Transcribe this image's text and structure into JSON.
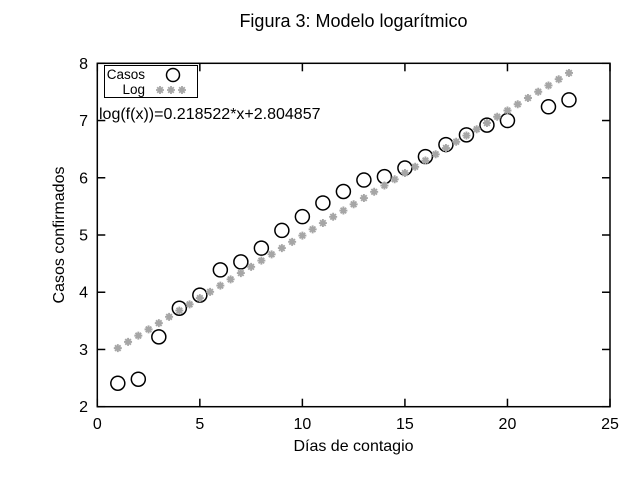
{
  "window": {
    "background": "#ffffff"
  },
  "colors": {
    "foreground": "#000000",
    "fit_marker_gray": "#a6a6a6"
  },
  "chart_data": {
    "type": "scatter",
    "title": "Figura 3: Modelo logarítmico",
    "xlabel": "Días de contagio",
    "ylabel": "Casos confirmados",
    "xlim": [
      0,
      25
    ],
    "ylim": [
      2,
      8
    ],
    "xticks": [
      0,
      5,
      10,
      15,
      20,
      25
    ],
    "yticks": [
      2,
      3,
      4,
      5,
      6,
      7,
      8
    ],
    "grid": false,
    "legend_position": "top-left",
    "series": [
      {
        "name": "Casos",
        "type": "scatter",
        "marker": "open-circle",
        "color": "#000000",
        "points": [
          [
            1,
            2.41
          ],
          [
            2,
            2.48
          ],
          [
            3,
            3.22
          ],
          [
            4,
            3.72
          ],
          [
            5,
            3.95
          ],
          [
            6,
            4.39
          ],
          [
            7,
            4.53
          ],
          [
            8,
            4.77
          ],
          [
            9,
            5.08
          ],
          [
            10,
            5.32
          ],
          [
            11,
            5.56
          ],
          [
            12,
            5.76
          ],
          [
            13,
            5.96
          ],
          [
            14,
            6.02
          ],
          [
            15,
            6.17
          ],
          [
            16,
            6.37
          ],
          [
            17,
            6.58
          ],
          [
            18,
            6.75
          ],
          [
            19,
            6.92
          ],
          [
            20,
            7.0
          ],
          [
            22,
            7.24
          ],
          [
            23,
            7.36
          ]
        ]
      },
      {
        "name": "Log",
        "type": "fit-line-points",
        "marker": "asterisk",
        "color": "#a6a6a6",
        "slope": 0.218522,
        "intercept": 2.804857,
        "x_start": 1,
        "x_end": 23,
        "x_step": 0.5
      }
    ],
    "annotation": "log(f(x))=0.218522*x+2.804857"
  }
}
